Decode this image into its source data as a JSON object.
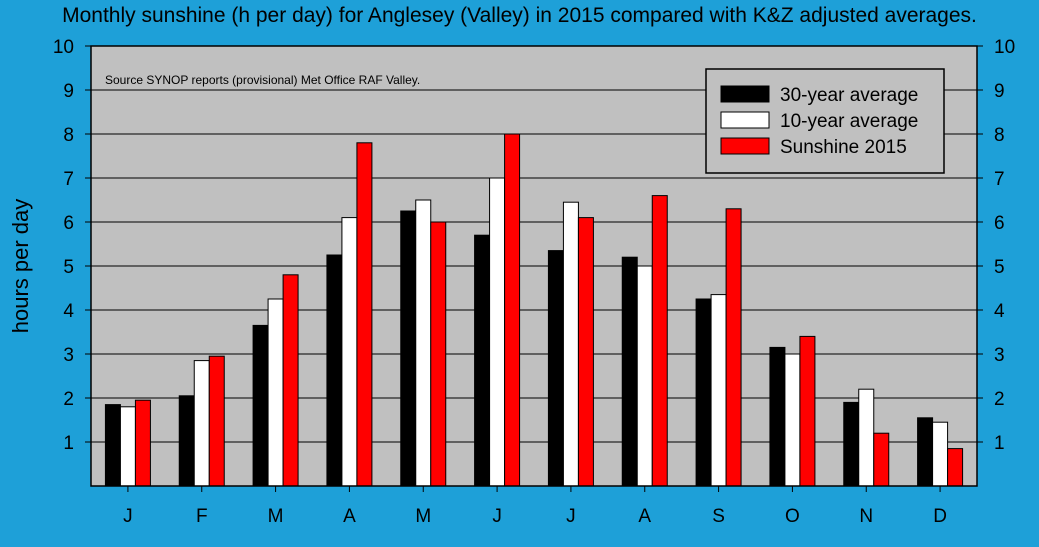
{
  "title": "Monthly sunshine (h per day) for Anglesey (Valley) in 2015 compared with K&Z adjusted averages.",
  "source_note": "Source SYNOP reports (provisional) Met Office RAF Valley.",
  "colors": {
    "background": "#1ea0d8",
    "plot_area": "#c0c0c0",
    "series": [
      "#000000",
      "#ffffff",
      "#ff0000"
    ]
  },
  "chart_data": {
    "type": "bar",
    "ylabel": "hours per day",
    "xlabel": "",
    "ylim": [
      0,
      10
    ],
    "yticks": [
      1,
      2,
      3,
      4,
      5,
      6,
      7,
      8,
      9,
      10
    ],
    "grid": true,
    "legend_position": "top-right",
    "categories": [
      "J",
      "F",
      "M",
      "A",
      "M",
      "J",
      "J",
      "A",
      "S",
      "O",
      "N",
      "D"
    ],
    "series": [
      {
        "name": "30-year average",
        "values": [
          1.85,
          2.05,
          3.65,
          5.25,
          6.25,
          5.7,
          5.35,
          5.2,
          4.25,
          3.15,
          1.9,
          1.55
        ]
      },
      {
        "name": "10-year average",
        "values": [
          1.8,
          2.85,
          4.25,
          6.1,
          6.5,
          7.0,
          6.45,
          5.0,
          4.35,
          3.0,
          2.2,
          1.45
        ]
      },
      {
        "name": "Sunshine 2015",
        "values": [
          1.95,
          2.95,
          4.8,
          7.8,
          6.0,
          8.0,
          6.1,
          6.6,
          6.3,
          3.4,
          1.2,
          0.85
        ]
      }
    ]
  }
}
